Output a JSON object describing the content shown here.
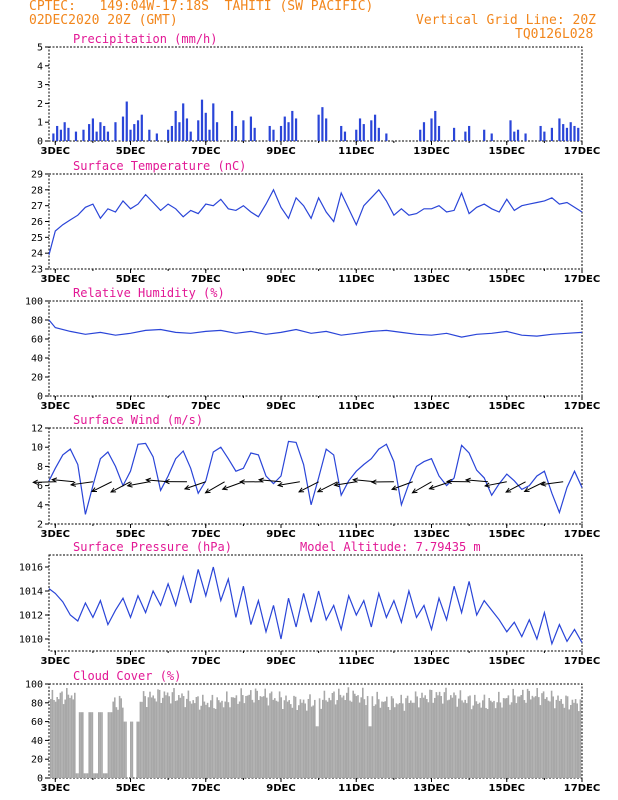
{
  "header": {
    "left1": "CPTEC:   149:04W-17:18S  TAHITI (SW PACIFIC)",
    "left2": "02DEC2020 20Z (GMT)",
    "right1": "Vertical Grid Line: 20Z",
    "right2": "TQ0126L028"
  },
  "colors": {
    "header": "#f2861c",
    "title": "#e21895",
    "line": "#2a45d8",
    "cloud": "#a8a8a8"
  },
  "x_ticks": [
    "3DEC",
    "5DEC",
    "7DEC",
    "9DEC",
    "11DEC",
    "13DEC",
    "15DEC",
    "17DEC"
  ],
  "chart_data": [
    {
      "id": "precip",
      "type": "bar",
      "title": "Precipitation (mm/h)",
      "x_range_days": [
        2.8333,
        17.0
      ],
      "ylim": [
        0,
        5
      ],
      "y_ticks": [
        "0",
        "1",
        "2",
        "3",
        "4",
        "5"
      ],
      "bars": [
        [
          2.95,
          0.4
        ],
        [
          3.05,
          0.8
        ],
        [
          3.15,
          0.6
        ],
        [
          3.25,
          1.0
        ],
        [
          3.35,
          0.7
        ],
        [
          3.55,
          0.5
        ],
        [
          3.75,
          0.6
        ],
        [
          3.9,
          0.9
        ],
        [
          4.0,
          1.2
        ],
        [
          4.1,
          0.5
        ],
        [
          4.2,
          1.0
        ],
        [
          4.3,
          0.8
        ],
        [
          4.4,
          0.5
        ],
        [
          4.6,
          1.0
        ],
        [
          4.8,
          1.3
        ],
        [
          4.9,
          2.1
        ],
        [
          5.0,
          0.6
        ],
        [
          5.1,
          0.9
        ],
        [
          5.2,
          1.1
        ],
        [
          5.3,
          1.4
        ],
        [
          5.5,
          0.6
        ],
        [
          5.7,
          0.4
        ],
        [
          6.0,
          0.6
        ],
        [
          6.1,
          0.8
        ],
        [
          6.2,
          1.6
        ],
        [
          6.3,
          1.0
        ],
        [
          6.4,
          2.0
        ],
        [
          6.5,
          1.2
        ],
        [
          6.6,
          0.5
        ],
        [
          6.8,
          1.1
        ],
        [
          6.9,
          2.2
        ],
        [
          7.0,
          1.5
        ],
        [
          7.1,
          0.6
        ],
        [
          7.2,
          2.0
        ],
        [
          7.3,
          1.0
        ],
        [
          7.7,
          1.6
        ],
        [
          7.8,
          0.8
        ],
        [
          8.0,
          1.1
        ],
        [
          8.2,
          1.3
        ],
        [
          8.3,
          0.7
        ],
        [
          8.7,
          0.8
        ],
        [
          8.8,
          0.6
        ],
        [
          9.0,
          0.8
        ],
        [
          9.1,
          1.3
        ],
        [
          9.2,
          1.0
        ],
        [
          9.3,
          1.6
        ],
        [
          9.4,
          1.2
        ],
        [
          10.0,
          1.4
        ],
        [
          10.1,
          1.8
        ],
        [
          10.2,
          1.2
        ],
        [
          10.6,
          0.8
        ],
        [
          10.7,
          0.5
        ],
        [
          11.0,
          0.6
        ],
        [
          11.1,
          1.2
        ],
        [
          11.2,
          0.9
        ],
        [
          11.4,
          1.1
        ],
        [
          11.5,
          1.4
        ],
        [
          11.6,
          0.7
        ],
        [
          11.8,
          0.4
        ],
        [
          12.7,
          0.6
        ],
        [
          12.8,
          1.0
        ],
        [
          13.0,
          1.2
        ],
        [
          13.1,
          1.6
        ],
        [
          13.2,
          0.8
        ],
        [
          13.6,
          0.7
        ],
        [
          13.9,
          0.5
        ],
        [
          14.0,
          0.8
        ],
        [
          14.4,
          0.6
        ],
        [
          14.6,
          0.4
        ],
        [
          15.1,
          1.1
        ],
        [
          15.2,
          0.5
        ],
        [
          15.3,
          0.6
        ],
        [
          15.5,
          0.4
        ],
        [
          15.9,
          0.8
        ],
        [
          16.0,
          0.5
        ],
        [
          16.2,
          0.7
        ],
        [
          16.4,
          1.2
        ],
        [
          16.5,
          0.9
        ],
        [
          16.6,
          0.7
        ],
        [
          16.7,
          1.0
        ],
        [
          16.8,
          0.8
        ],
        [
          16.9,
          0.7
        ]
      ]
    },
    {
      "id": "temp",
      "type": "line",
      "title": "Surface Temperature (nC)",
      "x_range_days": [
        2.8333,
        17.0
      ],
      "ylim": [
        23,
        29
      ],
      "y_ticks": [
        "23",
        "24",
        "25",
        "26",
        "27",
        "28",
        "29"
      ],
      "x": [
        2.833,
        2.9,
        3.0,
        3.2,
        3.4,
        3.6,
        3.8,
        4.0,
        4.2,
        4.4,
        4.6,
        4.8,
        5.0,
        5.2,
        5.4,
        5.6,
        5.8,
        6.0,
        6.2,
        6.4,
        6.6,
        6.8,
        7.0,
        7.2,
        7.4,
        7.6,
        7.8,
        8.0,
        8.2,
        8.4,
        8.6,
        8.8,
        9.0,
        9.2,
        9.4,
        9.6,
        9.8,
        10.0,
        10.2,
        10.4,
        10.6,
        10.8,
        11.0,
        11.2,
        11.4,
        11.6,
        11.8,
        12.0,
        12.2,
        12.4,
        12.6,
        12.8,
        13.0,
        13.2,
        13.4,
        13.6,
        13.8,
        14.0,
        14.2,
        14.4,
        14.6,
        14.8,
        15.0,
        15.2,
        15.4,
        15.6,
        15.8,
        16.0,
        16.2,
        16.4,
        16.6,
        16.8,
        17.0
      ],
      "y": [
        23.9,
        24.5,
        25.4,
        25.8,
        26.1,
        26.4,
        26.9,
        27.1,
        26.2,
        26.8,
        26.6,
        27.3,
        26.8,
        27.1,
        27.7,
        27.2,
        26.7,
        27.1,
        26.8,
        26.3,
        26.7,
        26.5,
        27.1,
        27.0,
        27.4,
        26.8,
        26.7,
        27.0,
        26.6,
        26.3,
        27.1,
        28.0,
        26.9,
        26.2,
        27.5,
        27.0,
        26.2,
        27.5,
        26.6,
        26.0,
        27.8,
        26.8,
        25.8,
        27.0,
        27.5,
        28.0,
        27.3,
        26.4,
        26.8,
        26.4,
        26.5,
        26.8,
        26.8,
        27.0,
        26.6,
        26.7,
        27.8,
        26.5,
        26.9,
        27.1,
        26.8,
        26.6,
        27.4,
        26.7,
        27.0,
        27.1,
        27.2,
        27.3,
        27.5,
        27.1,
        27.2,
        26.9,
        26.6
      ]
    },
    {
      "id": "rh",
      "type": "line",
      "title": "Relative Humidity (%)",
      "x_range_days": [
        2.8333,
        17.0
      ],
      "ylim": [
        0,
        100
      ],
      "y_ticks": [
        "0",
        "20",
        "40",
        "60",
        "80",
        "100"
      ],
      "x": [
        2.833,
        3.0,
        3.4,
        3.8,
        4.2,
        4.6,
        5.0,
        5.4,
        5.8,
        6.2,
        6.6,
        7.0,
        7.4,
        7.8,
        8.2,
        8.6,
        9.0,
        9.4,
        9.8,
        10.2,
        10.6,
        11.0,
        11.4,
        11.8,
        12.2,
        12.6,
        13.0,
        13.4,
        13.8,
        14.2,
        14.6,
        15.0,
        15.4,
        15.8,
        16.2,
        16.6,
        17.0
      ],
      "y": [
        80,
        72,
        68,
        65,
        67,
        64,
        66,
        69,
        70,
        67,
        66,
        68,
        69,
        66,
        68,
        65,
        67,
        70,
        66,
        68,
        64,
        66,
        68,
        69,
        67,
        65,
        64,
        66,
        62,
        65,
        66,
        68,
        64,
        63,
        65,
        66,
        67
      ]
    },
    {
      "id": "wind",
      "type": "line",
      "title": "Surface Wind (m/s)",
      "x_range_days": [
        2.8333,
        17.0
      ],
      "ylim": [
        2,
        12
      ],
      "y_ticks": [
        "2",
        "4",
        "6",
        "8",
        "10",
        "12"
      ],
      "x": [
        2.833,
        3.0,
        3.2,
        3.4,
        3.6,
        3.8,
        4.0,
        4.2,
        4.4,
        4.6,
        4.8,
        5.0,
        5.2,
        5.4,
        5.6,
        5.8,
        6.0,
        6.2,
        6.4,
        6.6,
        6.8,
        7.0,
        7.2,
        7.4,
        7.6,
        7.8,
        8.0,
        8.2,
        8.4,
        8.6,
        8.8,
        9.0,
        9.2,
        9.4,
        9.6,
        9.8,
        10.0,
        10.2,
        10.4,
        10.6,
        10.8,
        11.0,
        11.2,
        11.4,
        11.6,
        11.8,
        12.0,
        12.2,
        12.4,
        12.6,
        12.8,
        13.0,
        13.2,
        13.4,
        13.6,
        13.8,
        14.0,
        14.2,
        14.4,
        14.6,
        14.8,
        15.0,
        15.2,
        15.4,
        15.6,
        15.8,
        16.0,
        16.2,
        16.4,
        16.6,
        16.8,
        17.0
      ],
      "y": [
        6.5,
        7.8,
        9.2,
        9.8,
        8.2,
        3.0,
        6.0,
        8.8,
        9.5,
        8.0,
        6.0,
        7.5,
        10.3,
        10.4,
        9.0,
        5.5,
        7.0,
        8.8,
        9.6,
        7.8,
        5.2,
        6.5,
        9.5,
        10.0,
        8.8,
        7.5,
        7.8,
        9.4,
        9.2,
        7.0,
        6.2,
        7.0,
        10.6,
        10.5,
        8.2,
        4.0,
        6.8,
        9.8,
        9.2,
        5.0,
        6.5,
        7.5,
        8.2,
        8.8,
        9.8,
        10.3,
        8.5,
        4.0,
        6.2,
        8.0,
        8.5,
        8.8,
        7.0,
        6.0,
        6.8,
        10.2,
        9.4,
        7.6,
        6.8,
        5.0,
        6.2,
        7.2,
        6.5,
        5.6,
        6.0,
        7.0,
        7.5,
        5.2,
        3.2,
        5.8,
        7.5,
        5.8
      ]
    },
    {
      "id": "pressure",
      "type": "line",
      "title": "Surface Pressure (hPa)",
      "annotation": "Model Altitude: 7.79435 m",
      "x_range_days": [
        2.8333,
        17.0
      ],
      "ylim": [
        1009,
        1017
      ],
      "y_ticks": [
        "1010",
        "1012",
        "1014",
        "1016"
      ],
      "x": [
        2.833,
        3.0,
        3.2,
        3.4,
        3.6,
        3.8,
        4.0,
        4.2,
        4.4,
        4.6,
        4.8,
        5.0,
        5.2,
        5.4,
        5.6,
        5.8,
        6.0,
        6.2,
        6.4,
        6.6,
        6.8,
        7.0,
        7.2,
        7.4,
        7.6,
        7.8,
        8.0,
        8.2,
        8.4,
        8.6,
        8.8,
        9.0,
        9.2,
        9.4,
        9.6,
        9.8,
        10.0,
        10.2,
        10.4,
        10.6,
        10.8,
        11.0,
        11.2,
        11.4,
        11.6,
        11.8,
        12.0,
        12.2,
        12.4,
        12.6,
        12.8,
        13.0,
        13.2,
        13.4,
        13.6,
        13.8,
        14.0,
        14.2,
        14.4,
        14.6,
        14.8,
        15.0,
        15.2,
        15.4,
        15.6,
        15.8,
        16.0,
        16.2,
        16.4,
        16.6,
        16.8,
        17.0
      ],
      "y": [
        1014.2,
        1013.8,
        1013.1,
        1012.0,
        1011.5,
        1013.0,
        1011.8,
        1013.2,
        1011.2,
        1012.4,
        1013.4,
        1011.8,
        1013.6,
        1012.2,
        1014.0,
        1012.8,
        1014.6,
        1012.8,
        1015.2,
        1013.0,
        1015.8,
        1013.6,
        1016.0,
        1013.2,
        1015.0,
        1011.8,
        1014.4,
        1011.2,
        1013.2,
        1010.6,
        1012.8,
        1010.0,
        1013.4,
        1011.0,
        1013.8,
        1011.4,
        1014.0,
        1011.6,
        1012.8,
        1010.8,
        1013.6,
        1012.0,
        1013.2,
        1011.0,
        1013.8,
        1011.8,
        1013.2,
        1011.4,
        1014.0,
        1011.8,
        1012.8,
        1010.8,
        1013.4,
        1011.6,
        1014.4,
        1012.2,
        1014.8,
        1012.0,
        1013.2,
        1012.4,
        1011.6,
        1010.6,
        1011.4,
        1010.2,
        1011.6,
        1010.0,
        1012.2,
        1009.6,
        1011.2,
        1009.8,
        1010.8,
        1009.7
      ]
    },
    {
      "id": "cloud",
      "type": "bar",
      "title": "Cloud Cover (%)",
      "x_range_days": [
        2.8333,
        17.0
      ],
      "ylim": [
        0,
        100
      ],
      "y_ticks": [
        "0",
        "20",
        "40",
        "60",
        "80",
        "100"
      ],
      "note": "near-continuous gray bars, mostly 70-98% with gaps around 3DEC and 5DEC"
    }
  ]
}
